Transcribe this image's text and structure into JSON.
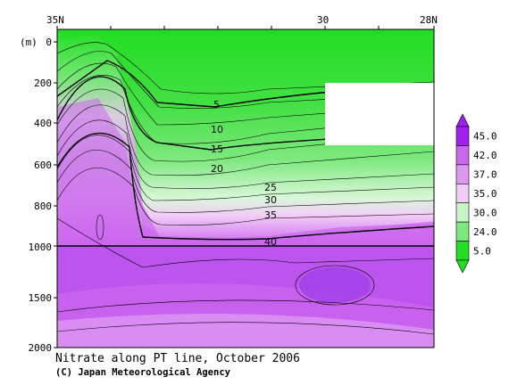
{
  "chart_data": {
    "type": "heatmap",
    "title": "Nitrate along PT line, October 2006",
    "credit": "(C) Japan Meteorological Agency",
    "x_ticks": [
      {
        "label": "35N",
        "lat": 35
      },
      {
        "label": "30",
        "lat": 30
      },
      {
        "label": "28N",
        "lat": 28
      }
    ],
    "x_range": [
      35,
      28
    ],
    "y_unit": "(m)",
    "y_ticks_upper": [
      "0",
      "200",
      "400",
      "600",
      "800",
      "1000"
    ],
    "y_ticks_lower": [
      "1500",
      "2000"
    ],
    "y_range": [
      0,
      2000
    ],
    "contour_labels": [
      "5",
      "10",
      "15",
      "20",
      "25",
      "30",
      "35",
      "40"
    ],
    "colorbar": {
      "labels": [
        "45.0",
        "42.0",
        "37.0",
        "35.0",
        "30.0",
        "24.0",
        "5.0"
      ],
      "colors": [
        "#a020f0",
        "#cc66ee",
        "#dd99f2",
        "#f2ccf7",
        "#c8f5c8",
        "#7ee87e",
        "#22dd22"
      ]
    }
  }
}
